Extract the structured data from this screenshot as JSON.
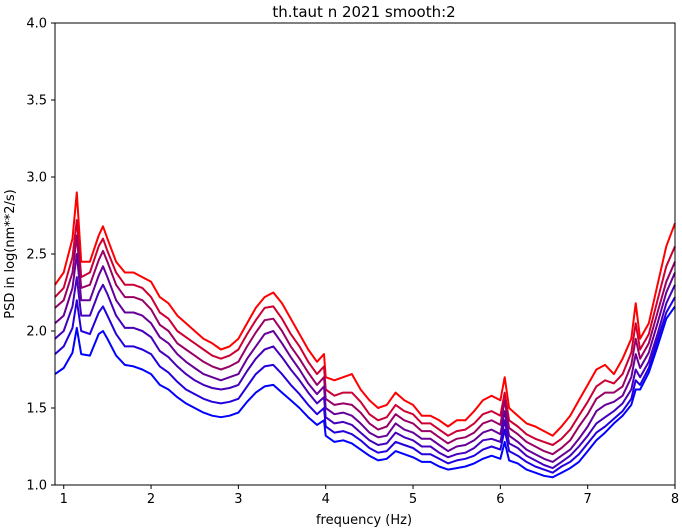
{
  "chart_data": {
    "type": "line",
    "title": "th.taut n 2021 smooth:2",
    "xlabel": "frequency (Hz)",
    "ylabel": "PSD in log(nm**2/s)",
    "xlim": [
      0.9,
      8.0
    ],
    "ylim": [
      1.0,
      4.0
    ],
    "x_ticks": [
      1,
      2,
      3,
      4,
      5,
      6,
      7,
      8
    ],
    "y_ticks": [
      "1.0",
      "1.5",
      "2.0",
      "2.5",
      "3.0",
      "3.5",
      "4.0"
    ],
    "grid": false,
    "legend": "none",
    "x": [
      0.9,
      1.0,
      1.1,
      1.15,
      1.2,
      1.3,
      1.4,
      1.45,
      1.5,
      1.6,
      1.7,
      1.8,
      1.9,
      2.0,
      2.1,
      2.2,
      2.3,
      2.4,
      2.5,
      2.6,
      2.7,
      2.8,
      2.9,
      3.0,
      3.1,
      3.2,
      3.3,
      3.4,
      3.5,
      3.6,
      3.7,
      3.8,
      3.9,
      3.98,
      4.0,
      4.1,
      4.2,
      4.3,
      4.4,
      4.5,
      4.6,
      4.7,
      4.8,
      4.9,
      5.0,
      5.1,
      5.2,
      5.3,
      5.4,
      5.5,
      5.6,
      5.7,
      5.8,
      5.9,
      6.0,
      6.05,
      6.1,
      6.2,
      6.3,
      6.4,
      6.5,
      6.6,
      6.7,
      6.8,
      6.9,
      7.0,
      7.1,
      7.2,
      7.3,
      7.4,
      7.5,
      7.55,
      7.6,
      7.7,
      7.8,
      7.9,
      8.0
    ],
    "series": [
      {
        "color": "#ff0000",
        "values": [
          2.3,
          2.38,
          2.6,
          2.9,
          2.45,
          2.45,
          2.62,
          2.68,
          2.6,
          2.45,
          2.38,
          2.38,
          2.35,
          2.32,
          2.22,
          2.18,
          2.1,
          2.05,
          2.0,
          1.95,
          1.92,
          1.88,
          1.9,
          1.95,
          2.05,
          2.15,
          2.22,
          2.25,
          2.18,
          2.08,
          1.98,
          1.88,
          1.8,
          1.85,
          1.7,
          1.68,
          1.7,
          1.72,
          1.62,
          1.55,
          1.5,
          1.52,
          1.6,
          1.55,
          1.52,
          1.45,
          1.45,
          1.42,
          1.38,
          1.42,
          1.42,
          1.48,
          1.55,
          1.58,
          1.55,
          1.7,
          1.5,
          1.45,
          1.4,
          1.38,
          1.35,
          1.32,
          1.38,
          1.45,
          1.55,
          1.65,
          1.75,
          1.78,
          1.72,
          1.82,
          1.95,
          2.18,
          1.95,
          2.05,
          2.3,
          2.55,
          2.7
        ]
      },
      {
        "color": "#cc0033",
        "values": [
          2.22,
          2.28,
          2.48,
          2.72,
          2.35,
          2.38,
          2.55,
          2.6,
          2.52,
          2.38,
          2.3,
          2.3,
          2.28,
          2.22,
          2.12,
          2.08,
          2.0,
          1.96,
          1.92,
          1.88,
          1.84,
          1.82,
          1.84,
          1.88,
          1.98,
          2.07,
          2.15,
          2.16,
          2.08,
          1.98,
          1.9,
          1.8,
          1.72,
          1.77,
          1.62,
          1.58,
          1.6,
          1.6,
          1.54,
          1.46,
          1.42,
          1.44,
          1.52,
          1.48,
          1.46,
          1.4,
          1.4,
          1.36,
          1.32,
          1.35,
          1.36,
          1.4,
          1.46,
          1.48,
          1.45,
          1.6,
          1.42,
          1.38,
          1.33,
          1.3,
          1.28,
          1.26,
          1.3,
          1.36,
          1.45,
          1.54,
          1.64,
          1.68,
          1.66,
          1.72,
          1.86,
          2.05,
          1.88,
          1.98,
          2.2,
          2.42,
          2.55
        ]
      },
      {
        "color": "#990066",
        "values": [
          2.15,
          2.2,
          2.38,
          2.62,
          2.28,
          2.3,
          2.46,
          2.52,
          2.45,
          2.3,
          2.22,
          2.22,
          2.2,
          2.14,
          2.04,
          2.0,
          1.92,
          1.88,
          1.84,
          1.8,
          1.77,
          1.75,
          1.77,
          1.8,
          1.9,
          1.99,
          2.07,
          2.08,
          2.0,
          1.9,
          1.82,
          1.73,
          1.65,
          1.7,
          1.56,
          1.52,
          1.53,
          1.52,
          1.47,
          1.4,
          1.36,
          1.38,
          1.46,
          1.42,
          1.4,
          1.35,
          1.35,
          1.31,
          1.27,
          1.3,
          1.31,
          1.34,
          1.4,
          1.42,
          1.39,
          1.55,
          1.37,
          1.33,
          1.28,
          1.25,
          1.22,
          1.2,
          1.24,
          1.29,
          1.38,
          1.46,
          1.56,
          1.6,
          1.6,
          1.64,
          1.78,
          1.95,
          1.82,
          1.92,
          2.12,
          2.32,
          2.45
        ]
      },
      {
        "color": "#660099",
        "values": [
          2.05,
          2.1,
          2.28,
          2.5,
          2.2,
          2.2,
          2.36,
          2.42,
          2.35,
          2.2,
          2.12,
          2.12,
          2.1,
          2.05,
          1.96,
          1.92,
          1.85,
          1.8,
          1.76,
          1.72,
          1.7,
          1.68,
          1.7,
          1.72,
          1.82,
          1.9,
          1.98,
          2.0,
          1.92,
          1.83,
          1.75,
          1.66,
          1.59,
          1.64,
          1.5,
          1.46,
          1.47,
          1.45,
          1.4,
          1.34,
          1.31,
          1.32,
          1.4,
          1.36,
          1.34,
          1.3,
          1.3,
          1.26,
          1.22,
          1.25,
          1.26,
          1.29,
          1.34,
          1.36,
          1.33,
          1.48,
          1.32,
          1.28,
          1.23,
          1.2,
          1.17,
          1.15,
          1.19,
          1.23,
          1.3,
          1.38,
          1.48,
          1.52,
          1.54,
          1.58,
          1.7,
          1.85,
          1.76,
          1.86,
          2.05,
          2.25,
          2.38
        ]
      },
      {
        "color": "#4400bb",
        "values": [
          1.95,
          2.0,
          2.16,
          2.35,
          2.1,
          2.1,
          2.25,
          2.3,
          2.24,
          2.1,
          2.02,
          2.02,
          2.0,
          1.96,
          1.87,
          1.83,
          1.77,
          1.72,
          1.68,
          1.65,
          1.63,
          1.62,
          1.63,
          1.65,
          1.74,
          1.82,
          1.88,
          1.9,
          1.83,
          1.75,
          1.68,
          1.6,
          1.53,
          1.57,
          1.44,
          1.4,
          1.41,
          1.39,
          1.34,
          1.29,
          1.26,
          1.27,
          1.34,
          1.31,
          1.29,
          1.25,
          1.25,
          1.21,
          1.18,
          1.2,
          1.21,
          1.24,
          1.29,
          1.3,
          1.28,
          1.42,
          1.27,
          1.24,
          1.19,
          1.16,
          1.13,
          1.11,
          1.15,
          1.19,
          1.25,
          1.32,
          1.4,
          1.44,
          1.48,
          1.53,
          1.62,
          1.75,
          1.7,
          1.8,
          1.98,
          2.18,
          2.3
        ]
      },
      {
        "color": "#2200dd",
        "values": [
          1.85,
          1.9,
          2.02,
          2.2,
          2.0,
          1.98,
          2.12,
          2.16,
          2.1,
          1.98,
          1.9,
          1.9,
          1.88,
          1.85,
          1.77,
          1.73,
          1.67,
          1.62,
          1.59,
          1.56,
          1.54,
          1.53,
          1.54,
          1.56,
          1.64,
          1.72,
          1.77,
          1.78,
          1.72,
          1.65,
          1.59,
          1.52,
          1.46,
          1.5,
          1.38,
          1.34,
          1.35,
          1.33,
          1.29,
          1.24,
          1.21,
          1.22,
          1.28,
          1.26,
          1.24,
          1.2,
          1.2,
          1.17,
          1.14,
          1.16,
          1.17,
          1.19,
          1.23,
          1.25,
          1.23,
          1.36,
          1.22,
          1.19,
          1.15,
          1.12,
          1.1,
          1.08,
          1.12,
          1.15,
          1.2,
          1.27,
          1.34,
          1.38,
          1.43,
          1.48,
          1.56,
          1.68,
          1.65,
          1.76,
          1.94,
          2.12,
          2.22
        ]
      },
      {
        "color": "#0000ff",
        "values": [
          1.72,
          1.76,
          1.86,
          2.02,
          1.85,
          1.84,
          1.98,
          2.0,
          1.95,
          1.84,
          1.78,
          1.77,
          1.75,
          1.72,
          1.65,
          1.62,
          1.57,
          1.53,
          1.5,
          1.47,
          1.45,
          1.44,
          1.45,
          1.47,
          1.54,
          1.6,
          1.64,
          1.65,
          1.6,
          1.55,
          1.5,
          1.44,
          1.39,
          1.42,
          1.32,
          1.28,
          1.29,
          1.27,
          1.23,
          1.19,
          1.16,
          1.17,
          1.22,
          1.2,
          1.18,
          1.15,
          1.15,
          1.12,
          1.1,
          1.11,
          1.12,
          1.14,
          1.17,
          1.19,
          1.17,
          1.28,
          1.16,
          1.14,
          1.1,
          1.08,
          1.06,
          1.05,
          1.08,
          1.11,
          1.15,
          1.22,
          1.29,
          1.34,
          1.4,
          1.45,
          1.52,
          1.62,
          1.62,
          1.73,
          1.9,
          2.08,
          2.16
        ]
      }
    ]
  }
}
